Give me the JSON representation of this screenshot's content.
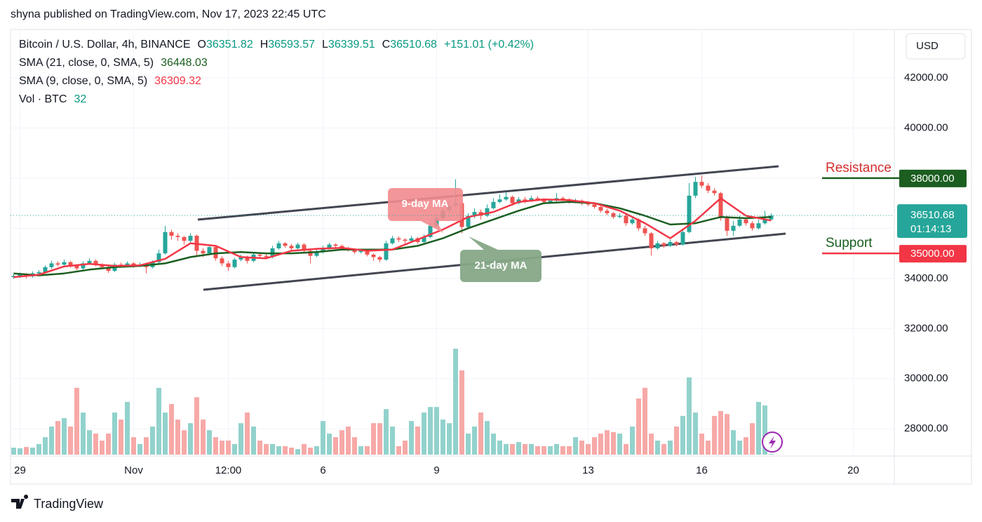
{
  "chart_data": {
    "type": "candlestick",
    "publisher": "shyna published on TradingView.com, Nov 17, 2023 22:45 UTC",
    "title": "Bitcoin / U.S. Dollar, 4h, BINANCE",
    "ohlc_labels": [
      "O",
      "H",
      "L",
      "C"
    ],
    "change": "+151.01 (+0.42%)",
    "currency": "USD",
    "countdown": "01:14:13",
    "brand": "TradingView",
    "up_color": "#26a69a",
    "down_color": "#ef5350",
    "up_volume_color": "#92d2cc",
    "down_volume_color": "#f7a9a7",
    "volume_name": "Vol · BTC",
    "candles": [
      [
        34050,
        34180,
        33980,
        34100
      ],
      [
        34100,
        34230,
        34020,
        34150
      ],
      [
        34150,
        34200,
        34000,
        34080
      ],
      [
        34080,
        34280,
        34030,
        34200
      ],
      [
        34200,
        34330,
        34150,
        34250
      ],
      [
        34250,
        34520,
        34200,
        34450
      ],
      [
        34450,
        34700,
        34380,
        34600
      ],
      [
        34600,
        34680,
        34480,
        34550
      ],
      [
        34550,
        34750,
        34500,
        34650
      ],
      [
        34650,
        34700,
        34430,
        34500
      ],
      [
        34500,
        34560,
        34320,
        34400
      ],
      [
        34400,
        34680,
        34350,
        34600
      ],
      [
        34600,
        34800,
        34550,
        34700
      ],
      [
        34700,
        34760,
        34480,
        34550
      ],
      [
        34550,
        34600,
        34380,
        34450
      ],
      [
        34450,
        34500,
        34220,
        34300
      ],
      [
        34300,
        34620,
        34250,
        34550
      ],
      [
        34550,
        34630,
        34430,
        34500
      ],
      [
        34500,
        34680,
        34450,
        34600
      ],
      [
        34600,
        34650,
        34420,
        34500
      ],
      [
        34500,
        34640,
        34450,
        34550
      ],
      [
        34550,
        34600,
        34200,
        34450
      ],
      [
        34450,
        34720,
        34400,
        34650
      ],
      [
        34650,
        35150,
        34600,
        35000
      ],
      [
        35000,
        36100,
        34950,
        35850
      ],
      [
        35850,
        35950,
        35550,
        35700
      ],
      [
        35700,
        35800,
        35500,
        35650
      ],
      [
        35650,
        35700,
        35350,
        35500
      ],
      [
        35500,
        35800,
        35420,
        35700
      ],
      [
        35700,
        35750,
        34900,
        35100
      ],
      [
        35100,
        35200,
        34850,
        35000
      ],
      [
        35000,
        35350,
        34950,
        35250
      ],
      [
        35250,
        35300,
        34700,
        34800
      ],
      [
        34800,
        34880,
        34500,
        34600
      ],
      [
        34600,
        34700,
        34300,
        34450
      ],
      [
        34450,
        34820,
        34400,
        34750
      ],
      [
        34750,
        34950,
        34680,
        34850
      ],
      [
        34850,
        34900,
        34600,
        34700
      ],
      [
        34700,
        35050,
        34650,
        34950
      ],
      [
        34950,
        35020,
        34820,
        34900
      ],
      [
        34900,
        34960,
        34780,
        34850
      ],
      [
        34850,
        35300,
        34800,
        35200
      ],
      [
        35200,
        35500,
        35150,
        35400
      ],
      [
        35400,
        35450,
        35220,
        35300
      ],
      [
        35300,
        35380,
        35120,
        35200
      ],
      [
        35200,
        35430,
        35150,
        35350
      ],
      [
        35350,
        35400,
        35020,
        35100
      ],
      [
        35100,
        35150,
        34600,
        34900
      ],
      [
        34900,
        35150,
        34850,
        35050
      ],
      [
        35050,
        35300,
        35000,
        35200
      ],
      [
        35200,
        35420,
        35150,
        35350
      ],
      [
        35350,
        35400,
        35220,
        35300
      ],
      [
        35300,
        35350,
        35120,
        35200
      ],
      [
        35200,
        35260,
        35080,
        35150
      ],
      [
        35150,
        35200,
        34980,
        35050
      ],
      [
        35050,
        35180,
        35000,
        35100
      ],
      [
        35100,
        35150,
        34880,
        34950
      ],
      [
        34950,
        35000,
        34700,
        34850
      ],
      [
        34850,
        34900,
        34650,
        34750
      ],
      [
        34750,
        35500,
        34700,
        35400
      ],
      [
        35400,
        35700,
        35350,
        35600
      ],
      [
        35600,
        35680,
        35450,
        35550
      ],
      [
        35550,
        35600,
        35400,
        35500
      ],
      [
        35500,
        35700,
        35450,
        35600
      ],
      [
        35600,
        35650,
        35380,
        35450
      ],
      [
        35450,
        35750,
        35400,
        35650
      ],
      [
        35650,
        36200,
        35600,
        36100
      ],
      [
        36100,
        36550,
        36050,
        36400
      ],
      [
        36400,
        36800,
        36300,
        36700
      ],
      [
        36700,
        37100,
        36600,
        36900
      ],
      [
        36900,
        37950,
        36800,
        37000
      ],
      [
        37000,
        37100,
        35800,
        36050
      ],
      [
        36050,
        36600,
        36000,
        36500
      ],
      [
        36500,
        36800,
        36400,
        36650
      ],
      [
        36650,
        36750,
        36350,
        36500
      ],
      [
        36500,
        36950,
        36450,
        36800
      ],
      [
        36800,
        37200,
        36750,
        37050
      ],
      [
        37050,
        37350,
        37000,
        37150
      ],
      [
        37150,
        37450,
        37100,
        37250
      ],
      [
        37250,
        37300,
        36900,
        37000
      ],
      [
        37000,
        37250,
        36950,
        37150
      ],
      [
        37150,
        37250,
        37000,
        37100
      ],
      [
        37100,
        37300,
        37050,
        37200
      ],
      [
        37200,
        37280,
        37080,
        37150
      ],
      [
        37150,
        37200,
        36980,
        37050
      ],
      [
        37050,
        37180,
        37000,
        37100
      ],
      [
        37100,
        37400,
        37050,
        37200
      ],
      [
        37200,
        37260,
        37080,
        37150
      ],
      [
        37150,
        37200,
        36980,
        37050
      ],
      [
        37050,
        37180,
        37000,
        37100
      ],
      [
        37100,
        37150,
        36920,
        37000
      ],
      [
        37000,
        37080,
        36880,
        36950
      ],
      [
        36950,
        37000,
        36780,
        36850
      ],
      [
        36850,
        36900,
        36620,
        36700
      ],
      [
        36700,
        36780,
        36520,
        36600
      ],
      [
        36600,
        36650,
        36380,
        36450
      ],
      [
        36450,
        36600,
        36400,
        36500
      ],
      [
        36500,
        36550,
        36100,
        36200
      ],
      [
        36200,
        36450,
        36150,
        36350
      ],
      [
        36350,
        36400,
        35900,
        36000
      ],
      [
        36000,
        36100,
        35700,
        35800
      ],
      [
        35800,
        35850,
        34900,
        35200
      ],
      [
        35200,
        35500,
        35150,
        35400
      ],
      [
        35400,
        35450,
        35220,
        35300
      ],
      [
        35300,
        35550,
        35250,
        35450
      ],
      [
        35450,
        35500,
        35280,
        35350
      ],
      [
        35350,
        35950,
        35300,
        35850
      ],
      [
        35850,
        37800,
        35800,
        37300
      ],
      [
        37300,
        38050,
        37200,
        37850
      ],
      [
        37850,
        38100,
        37600,
        37700
      ],
      [
        37700,
        37800,
        37400,
        37500
      ],
      [
        37500,
        37600,
        37300,
        37400
      ],
      [
        37400,
        37450,
        36300,
        36400
      ],
      [
        36400,
        36500,
        35700,
        35900
      ],
      [
        35900,
        36300,
        35700,
        36100
      ],
      [
        36100,
        36500,
        36050,
        36350
      ],
      [
        36350,
        36400,
        36100,
        36200
      ],
      [
        36200,
        36280,
        35900,
        36000
      ],
      [
        36000,
        36350,
        35950,
        36200
      ],
      [
        36200,
        36700,
        36150,
        36350
      ],
      [
        36351.82,
        36593.57,
        36339.51,
        36510.68
      ]
    ],
    "volume": [
      330,
      300,
      360,
      330,
      500,
      820,
      1320,
      1580,
      1720,
      1320,
      3140,
      1980,
      1150,
      990,
      660,
      990,
      1980,
      1650,
      2480,
      820,
      500,
      820,
      1320,
      3140,
      1980,
      2380,
      1650,
      1150,
      1480,
      2700,
      1650,
      1150,
      820,
      660,
      660,
      500,
      1480,
      1980,
      1320,
      660,
      500,
      500,
      400,
      400,
      330,
      260,
      500,
      330,
      400,
      1580,
      990,
      820,
      1150,
      1320,
      820,
      400,
      400,
      1480,
      1480,
      2140,
      1320,
      400,
      660,
      1580,
      1320,
      1980,
      2240,
      2240,
      1650,
      1480,
      4980,
      3960,
      990,
      1320,
      1980,
      1580,
      990,
      660,
      500,
      500,
      590,
      500,
      500,
      400,
      400,
      400,
      500,
      400,
      400,
      820,
      660,
      500,
      820,
      990,
      1150,
      1060,
      990,
      500,
      1320,
      2640,
      3140,
      990,
      660,
      500,
      660,
      1320,
      1820,
      3630,
      1980,
      990,
      660,
      1820,
      2050,
      1910,
      1150,
      660,
      820,
      1480,
      2480,
      2310,
      32
    ],
    "series": [
      {
        "name": "SMA (21, close, 0, SMA, 5)",
        "color": "#1b5e20",
        "x": [
          0,
          4,
          8,
          12,
          16,
          20,
          24,
          28,
          32,
          36,
          40,
          44,
          48,
          52,
          56,
          60,
          64,
          68,
          72,
          76,
          80,
          84,
          88,
          92,
          96,
          100,
          104,
          108,
          112,
          116,
          120
        ],
        "values": [
          34200,
          34120,
          34200,
          34350,
          34450,
          34500,
          34600,
          34850,
          35000,
          35050,
          35000,
          35000,
          35050,
          35150,
          35150,
          35150,
          35300,
          35600,
          36000,
          36350,
          36700,
          37000,
          37050,
          37000,
          36800,
          36500,
          36150,
          36200,
          36450,
          36400,
          36448.03
        ]
      },
      {
        "name": "SMA (9, close, 0, SMA, 5)",
        "color": "#f23645",
        "x": [
          0,
          4,
          8,
          12,
          16,
          20,
          24,
          28,
          32,
          36,
          40,
          44,
          48,
          52,
          56,
          60,
          64,
          68,
          72,
          76,
          80,
          84,
          88,
          92,
          96,
          100,
          104,
          108,
          112,
          116,
          120
        ],
        "values": [
          34050,
          34150,
          34480,
          34580,
          34500,
          34520,
          34780,
          35400,
          35300,
          34850,
          34800,
          35100,
          35180,
          35220,
          35100,
          35150,
          35550,
          35950,
          36450,
          36650,
          37050,
          37150,
          37120,
          37000,
          36700,
          36200,
          35600,
          36300,
          37200,
          36500,
          36309.32
        ]
      }
    ],
    "xlim": [
      -0.5,
      139.5
    ],
    "xticks": [
      {
        "value": 1,
        "label": "29"
      },
      {
        "value": 19,
        "label": "Nov"
      },
      {
        "value": 34,
        "label": "12:00"
      },
      {
        "value": 49,
        "label": "6"
      },
      {
        "value": 67,
        "label": "9"
      },
      {
        "value": 91,
        "label": "13"
      },
      {
        "value": 109,
        "label": "16"
      },
      {
        "value": 133,
        "label": "20"
      }
    ],
    "ylim": [
      27000,
      43900
    ],
    "yticks": [
      {
        "value": 28000,
        "label": "28000.00"
      },
      {
        "value": 30000,
        "label": "30000.00"
      },
      {
        "value": 32000,
        "label": "32000.00"
      },
      {
        "value": 34000,
        "label": "34000.00"
      },
      {
        "value": 36000,
        "label": "36000.00"
      },
      {
        "value": 38000,
        "label": "38000.00"
      },
      {
        "value": 40000,
        "label": "40000.00"
      },
      {
        "value": 42000,
        "label": "42000.00"
      }
    ],
    "annotations": [
      {
        "text": "9-day MA"
      },
      {
        "text": "21-day MA"
      },
      {
        "text": "Resistance",
        "value": 38000,
        "label": "38000.00"
      },
      {
        "text": "Support",
        "value": 35000,
        "label": "35000.00"
      }
    ]
  }
}
